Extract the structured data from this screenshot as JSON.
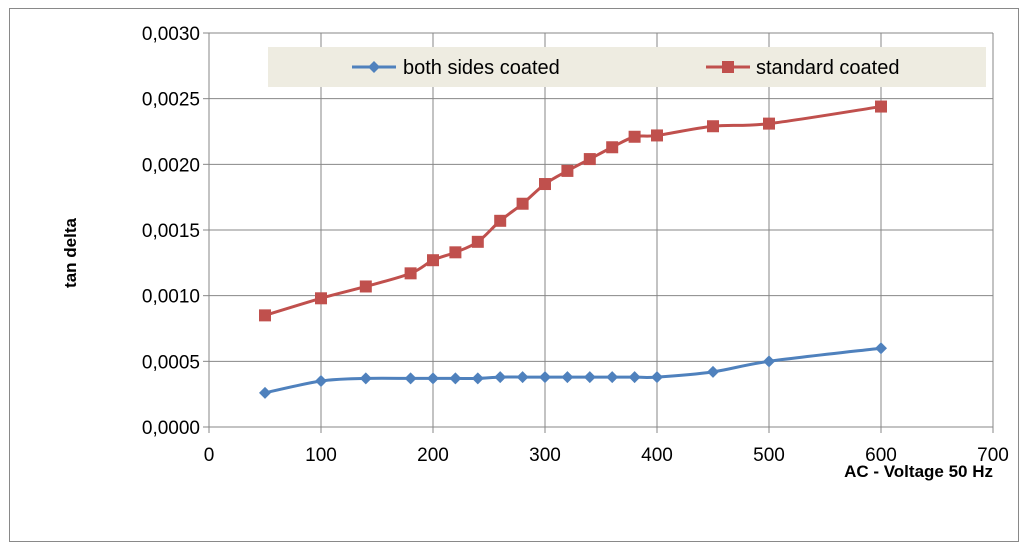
{
  "chart_data": {
    "type": "line",
    "xlabel": "AC - Voltage  50 Hz",
    "ylabel": "tan delta",
    "xlim": [
      0,
      700
    ],
    "ylim": [
      0,
      0.003
    ],
    "x_ticks": [
      0,
      100,
      200,
      300,
      400,
      500,
      600,
      700
    ],
    "x_tick_labels": [
      "0",
      "100",
      "200",
      "300",
      "400",
      "500",
      "600",
      "700"
    ],
    "y_ticks": [
      0,
      0.0005,
      0.001,
      0.0015,
      0.002,
      0.0025,
      0.003
    ],
    "y_tick_labels": [
      "0,0000",
      "0,0005",
      "0,0010",
      "0,0015",
      "0,0020",
      "0,0025",
      "0,0030"
    ],
    "grid": true,
    "legend_position": "top",
    "series": [
      {
        "name": "both sides coated",
        "color": "#4F81BD",
        "marker": "diamond",
        "x": [
          50,
          100,
          140,
          180,
          200,
          220,
          240,
          260,
          280,
          300,
          320,
          340,
          360,
          380,
          400,
          450,
          500,
          600
        ],
        "y": [
          0.00026,
          0.00035,
          0.00037,
          0.00037,
          0.00037,
          0.00037,
          0.00037,
          0.00038,
          0.00038,
          0.00038,
          0.00038,
          0.00038,
          0.00038,
          0.00038,
          0.00038,
          0.00042,
          0.0005,
          0.0006
        ]
      },
      {
        "name": "standard coated",
        "color": "#C0504D",
        "marker": "square",
        "x": [
          50,
          100,
          140,
          180,
          200,
          220,
          240,
          260,
          280,
          300,
          320,
          340,
          360,
          380,
          400,
          450,
          500,
          600
        ],
        "y": [
          0.00085,
          0.00098,
          0.00107,
          0.00117,
          0.00127,
          0.00133,
          0.00141,
          0.00157,
          0.0017,
          0.00185,
          0.00195,
          0.00204,
          0.00213,
          0.00221,
          0.00222,
          0.00229,
          0.00231,
          0.00244
        ]
      }
    ]
  }
}
